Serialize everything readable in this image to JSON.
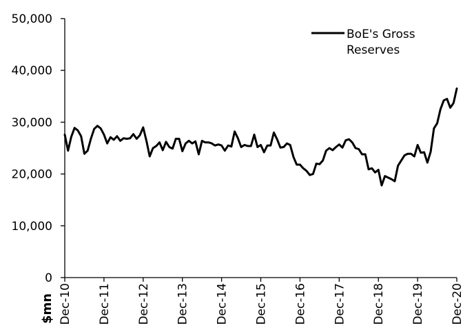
{
  "chart_data": {
    "type": "line",
    "ylabel": "$mn",
    "ylim": [
      0,
      50000
    ],
    "y_ticks": [
      0,
      10000,
      20000,
      30000,
      40000,
      50000
    ],
    "y_tick_labels": [
      "0",
      "10,000",
      "20,000",
      "30,000",
      "40,000",
      "50,000"
    ],
    "x_tick_labels": [
      "Dec-10",
      "Dec-11",
      "Dec-12",
      "Dec-13",
      "Dec-14",
      "Dec-15",
      "Dec-16",
      "Dec-17",
      "Dec-18",
      "Dec-19",
      "Dec-20"
    ],
    "legend": {
      "position": "top-right"
    },
    "grid": false,
    "series": [
      {
        "name": "BoE's Gross\nReserves",
        "color": "#000000",
        "x_start": "Dec-10",
        "frequency": "monthly",
        "values": [
          27600,
          24500,
          27200,
          28900,
          28400,
          27300,
          23900,
          24500,
          26800,
          28700,
          29300,
          28800,
          27600,
          25900,
          27100,
          26600,
          27300,
          26400,
          26900,
          26800,
          26900,
          27700,
          26800,
          27500,
          29000,
          26400,
          23400,
          25000,
          25400,
          26100,
          24600,
          26200,
          25200,
          24900,
          26800,
          26800,
          24400,
          25900,
          26400,
          25900,
          26300,
          23800,
          26400,
          26100,
          26100,
          25900,
          25500,
          25700,
          25500,
          24500,
          25500,
          25300,
          28200,
          26900,
          25200,
          25600,
          25400,
          25400,
          27600,
          25200,
          25600,
          24200,
          25500,
          25500,
          28000,
          26700,
          25100,
          25200,
          25900,
          25600,
          23300,
          21800,
          21800,
          21100,
          20600,
          19800,
          20000,
          22000,
          21900,
          22600,
          24500,
          25000,
          24600,
          25200,
          25700,
          25100,
          26500,
          26700,
          26100,
          25000,
          24800,
          23800,
          23800,
          20900,
          21100,
          20300,
          20800,
          17800,
          19600,
          19300,
          19000,
          18600,
          21600,
          22600,
          23600,
          23900,
          23900,
          23400,
          25600,
          24100,
          24200,
          22200,
          24300,
          28800,
          29800,
          32500,
          34200,
          34500,
          32800,
          33700,
          36500
        ]
      }
    ]
  }
}
